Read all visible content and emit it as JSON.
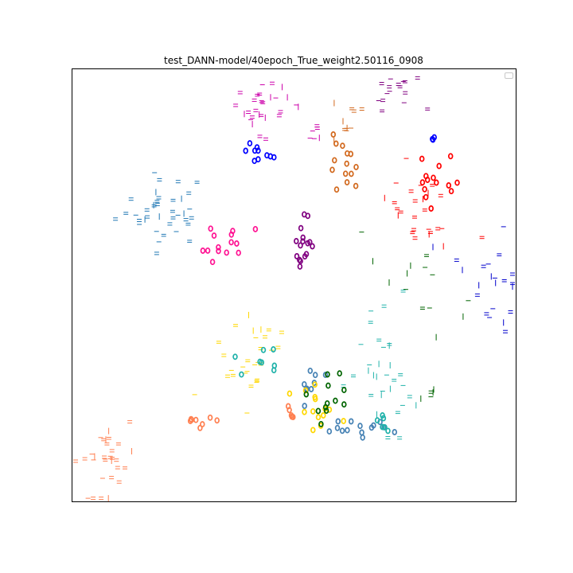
{
  "chart_data": {
    "type": "scatter",
    "title": "test_DANN-model/40epoch_True_weight2.50116_0908",
    "xlabel": "",
    "ylabel": "",
    "xlim": [
      0,
      100
    ],
    "ylim": [
      0,
      100
    ],
    "axis_ticks": false,
    "grid": false,
    "legend": {
      "placement": "top-right",
      "entries": []
    },
    "marker_types": [
      "source-digit",
      "target-circle"
    ],
    "clusters": [
      {
        "color": "#1f77b4",
        "marker": "source-digit",
        "cx": 20.5,
        "cy": 67.5,
        "sx": 5.2,
        "sy": 4.2,
        "n": 38
      },
      {
        "color": "#cc00aa",
        "marker": "source-digit",
        "cx": 42.5,
        "cy": 91.0,
        "sx": 3.2,
        "sy": 3.2,
        "n": 28
      },
      {
        "color": "#cc00aa",
        "marker": "source-digit",
        "cx": 54.5,
        "cy": 84.5,
        "sx": 1.0,
        "sy": 1.2,
        "n": 6
      },
      {
        "color": "#800080",
        "marker": "source-digit",
        "cx": 73.0,
        "cy": 95.0,
        "sx": 3.5,
        "sy": 2.0,
        "n": 16
      },
      {
        "color": "#d2691e",
        "marker": "source-digit",
        "cx": 61.5,
        "cy": 86.5,
        "sx": 1.6,
        "sy": 2.2,
        "n": 10
      },
      {
        "color": "#ff0000",
        "marker": "source-digit",
        "cx": 78.5,
        "cy": 68.0,
        "sx": 4.8,
        "sy": 6.5,
        "n": 26
      },
      {
        "color": "#0000cc",
        "marker": "source-digit",
        "cx": 94.5,
        "cy": 51.0,
        "sx": 3.8,
        "sy": 6.8,
        "n": 22
      },
      {
        "color": "#006400",
        "marker": "source-digit",
        "cx": 78.0,
        "cy": 49.0,
        "sx": 5.0,
        "sy": 6.5,
        "n": 14
      },
      {
        "color": "#20b2aa",
        "marker": "source-digit",
        "cx": 70.5,
        "cy": 30.5,
        "sx": 4.0,
        "sy": 6.5,
        "n": 32
      },
      {
        "color": "#ffd700",
        "marker": "source-digit",
        "cx": 40.5,
        "cy": 34.0,
        "sx": 3.8,
        "sy": 6.0,
        "n": 28
      },
      {
        "color": "#ff7f50",
        "marker": "source-digit",
        "cx": 6.0,
        "cy": 9.5,
        "sx": 3.2,
        "sy": 5.5,
        "n": 30
      },
      {
        "color": "#006400",
        "marker": "source-digit",
        "cx": 79.5,
        "cy": 25.0,
        "sx": 1.0,
        "sy": 1.0,
        "n": 5
      },
      {
        "color": "#0000ff",
        "marker": "target-circle",
        "cx": 41.5,
        "cy": 80.0,
        "sx": 1.8,
        "sy": 2.4,
        "n": 10
      },
      {
        "color": "#0000ff",
        "marker": "target-circle",
        "cx": 81.5,
        "cy": 84.0,
        "sx": 0.3,
        "sy": 0.3,
        "n": 3
      },
      {
        "color": "#d2691e",
        "marker": "target-circle",
        "cx": 61.0,
        "cy": 78.5,
        "sx": 1.7,
        "sy": 3.5,
        "n": 14
      },
      {
        "color": "#ff0000",
        "marker": "target-circle",
        "cx": 81.0,
        "cy": 73.5,
        "sx": 3.0,
        "sy": 3.5,
        "n": 14
      },
      {
        "color": "#800080",
        "marker": "target-circle",
        "cx": 52.5,
        "cy": 60.5,
        "sx": 1.3,
        "sy": 4.0,
        "n": 16
      },
      {
        "color": "#ff1493",
        "marker": "target-circle",
        "cx": 33.5,
        "cy": 57.5,
        "sx": 2.6,
        "sy": 3.6,
        "n": 14
      },
      {
        "color": "#20b2aa",
        "marker": "target-circle",
        "cx": 43.0,
        "cy": 32.5,
        "sx": 2.2,
        "sy": 2.0,
        "n": 8
      },
      {
        "color": "#4682b4",
        "marker": "target-circle",
        "cx": 53.0,
        "cy": 27.5,
        "sx": 1.6,
        "sy": 2.8,
        "n": 10
      },
      {
        "color": "#ffd700",
        "marker": "target-circle",
        "cx": 55.0,
        "cy": 20.5,
        "sx": 2.0,
        "sy": 3.2,
        "n": 14
      },
      {
        "color": "#006400",
        "marker": "target-circle",
        "cx": 58.0,
        "cy": 23.5,
        "sx": 2.2,
        "sy": 4.0,
        "n": 12
      },
      {
        "color": "#4682b4",
        "marker": "target-circle",
        "cx": 65.5,
        "cy": 17.0,
        "sx": 3.0,
        "sy": 1.2,
        "n": 14
      },
      {
        "color": "#20b2aa",
        "marker": "target-circle",
        "cx": 70.5,
        "cy": 18.5,
        "sx": 1.2,
        "sy": 1.0,
        "n": 6
      },
      {
        "color": "#ff7f50",
        "marker": "target-circle",
        "cx": 29.0,
        "cy": 18.5,
        "sx": 2.0,
        "sy": 1.2,
        "n": 8
      },
      {
        "color": "#ff7f50",
        "marker": "target-circle",
        "cx": 49.0,
        "cy": 20.5,
        "sx": 0.8,
        "sy": 1.5,
        "n": 5
      }
    ]
  }
}
